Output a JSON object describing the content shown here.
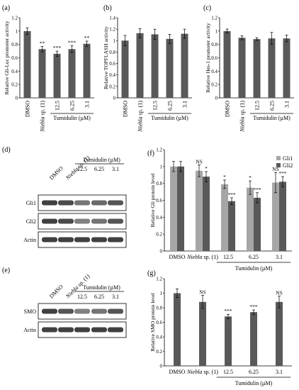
{
  "colors": {
    "bar_dark": "#595959",
    "bar_light": "#a6a6a6",
    "axis": "#000000",
    "blot_band": "#2b2b2b"
  },
  "conditions": {
    "dmso": "DMSO",
    "niebla_italic": "Niebla",
    "niebla_rest": " sp. (1)",
    "doses": [
      "12.5",
      "6.25",
      "3.1"
    ],
    "tumidulin_label": "Tumidulin (µM)"
  },
  "chart_data": [
    {
      "panel": "(a)",
      "type": "bar",
      "ylabel": "Relative Gli-Luc promoter activity",
      "ylim": [
        0,
        1.2
      ],
      "yticks": [
        "0",
        "0.2",
        "0.4",
        "0.6",
        "0.8",
        "1",
        "1.2"
      ],
      "values": [
        1.0,
        0.73,
        0.66,
        0.73,
        0.81
      ],
      "errors": [
        0.05,
        0.04,
        0.04,
        0.05,
        0.04
      ],
      "annotations": [
        "",
        "**",
        "***",
        "***",
        "**"
      ]
    },
    {
      "panel": "(b)",
      "type": "bar",
      "ylabel": "Relative TOPFLASH activity",
      "ylim": [
        0,
        1.4
      ],
      "yticks": [
        "0",
        "0.2",
        "0.4",
        "0.6",
        "0.8",
        "1",
        "1.2",
        "1.4"
      ],
      "values": [
        1.0,
        1.13,
        1.11,
        1.03,
        1.12
      ],
      "errors": [
        0.09,
        0.08,
        0.09,
        0.08,
        0.08
      ],
      "annotations": [
        "",
        "",
        "",
        "",
        ""
      ]
    },
    {
      "panel": "(c)",
      "type": "bar",
      "ylabel": "Relative Hes-1 promoter activity",
      "ylim": [
        0,
        1.2
      ],
      "yticks": [
        "0",
        "0.2",
        "0.4",
        "0.6",
        "0.8",
        "1",
        "1.2"
      ],
      "values": [
        1.0,
        0.9,
        0.88,
        0.89,
        0.89
      ],
      "errors": [
        0.03,
        0.03,
        0.02,
        0.09,
        0.05
      ],
      "annotations": [
        "",
        "",
        "",
        "",
        ""
      ]
    },
    {
      "panel": "(f)",
      "type": "bar",
      "ylabel": "Relative Gli protein level",
      "ylim": [
        0,
        1.2
      ],
      "yticks": [
        "0",
        "0.2",
        "0.4",
        "0.6",
        "0.8",
        "1",
        "1.2"
      ],
      "legend_position": "top-right",
      "series": [
        {
          "name": "Gli1",
          "values": [
            1.0,
            0.95,
            0.79,
            0.75,
            0.81
          ],
          "errors": [
            0.06,
            0.07,
            0.05,
            0.08,
            0.12
          ],
          "annotations": [
            "",
            "NS",
            "*",
            "*",
            "NS"
          ]
        },
        {
          "name": "Gli2",
          "values": [
            1.0,
            0.88,
            0.59,
            0.63,
            0.82
          ],
          "errors": [
            0.06,
            0.06,
            0.04,
            0.06,
            0.06
          ],
          "annotations": [
            "",
            "*",
            "***",
            "***",
            "***"
          ]
        }
      ]
    },
    {
      "panel": "(g)",
      "type": "bar",
      "ylabel": "Relative SMO protein level",
      "ylim": [
        0,
        1.2
      ],
      "yticks": [
        "0",
        "0.2",
        "0.4",
        "0.6",
        "0.8",
        "1",
        "1.2"
      ],
      "values": [
        1.0,
        0.88,
        0.68,
        0.74,
        0.88
      ],
      "errors": [
        0.06,
        0.09,
        0.03,
        0.03,
        0.08
      ],
      "annotations": [
        "",
        "NS",
        "***",
        "***",
        "NS"
      ]
    }
  ],
  "blots": {
    "d": {
      "panel": "(d)",
      "rows": [
        "Gli1",
        "Gli2",
        "Actin"
      ],
      "intensities": [
        [
          0.9,
          0.85,
          0.65,
          0.7,
          0.8
        ],
        [
          0.9,
          0.85,
          0.6,
          0.65,
          0.8
        ],
        [
          0.9,
          0.9,
          0.9,
          0.9,
          0.9
        ]
      ]
    },
    "e": {
      "panel": "(e)",
      "rows": [
        "SMO",
        "Actin"
      ],
      "intensities": [
        [
          0.9,
          0.8,
          0.6,
          0.65,
          0.8
        ],
        [
          0.9,
          0.9,
          0.9,
          0.9,
          0.9
        ]
      ]
    }
  }
}
